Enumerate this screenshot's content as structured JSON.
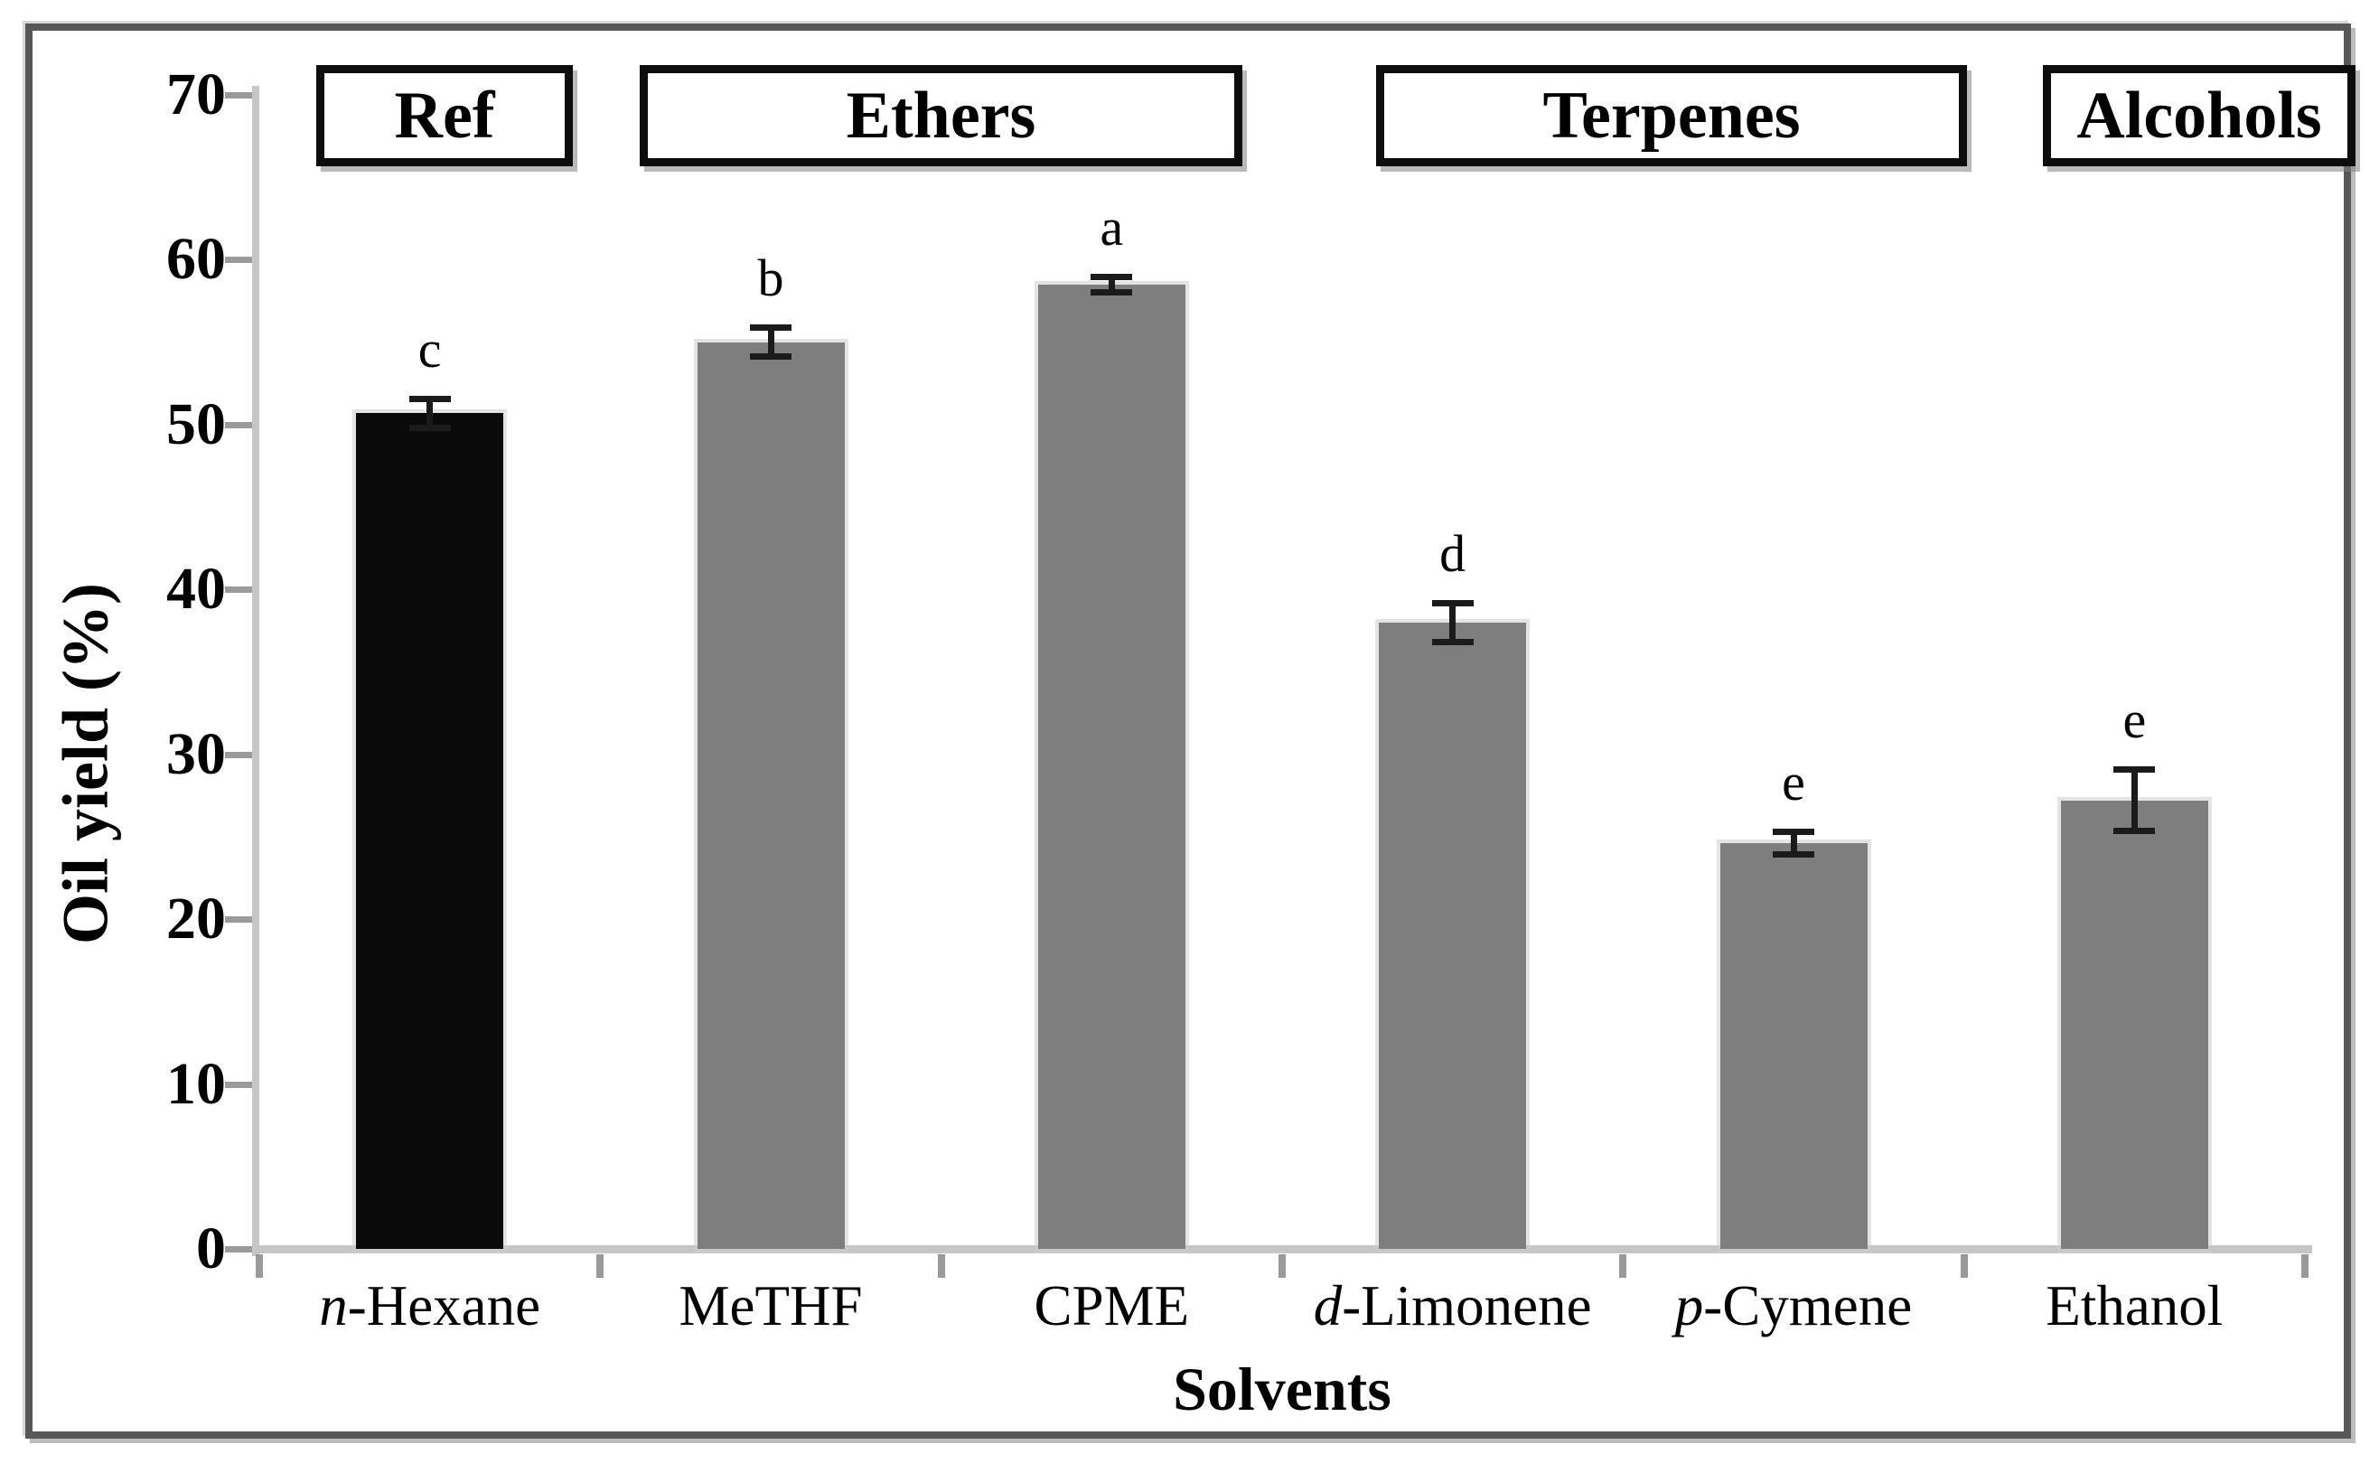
{
  "chart_data": {
    "type": "bar",
    "title": "",
    "categories": [
      "n-Hexane",
      "MeTHF",
      "CPME",
      "d-Limonene",
      "p-Cymene",
      "Ethanol"
    ],
    "category_italic_prefix_len": [
      1,
      0,
      0,
      1,
      1,
      0
    ],
    "values": [
      50.7,
      55.0,
      58.5,
      38.0,
      24.6,
      27.2
    ],
    "error_bars": [
      0.9,
      0.9,
      0.5,
      1.2,
      0.7,
      1.9
    ],
    "significance_letters": [
      "c",
      "b",
      "a",
      "d",
      "e",
      "e"
    ],
    "bar_colors": [
      "#0a0a0a",
      "#7e7e7e",
      "#7e7e7e",
      "#7e7e7e",
      "#7e7e7e",
      "#7e7e7e"
    ],
    "groups": [
      {
        "label": "Ref",
        "categories": [
          "n-Hexane"
        ]
      },
      {
        "label": "Ethers",
        "categories": [
          "MeTHF",
          "CPME"
        ]
      },
      {
        "label": "Terpenes",
        "categories": [
          "d-Limonene",
          "p-Cymene"
        ]
      },
      {
        "label": "Alcohols",
        "categories": [
          "Ethanol"
        ]
      }
    ],
    "xlabel": "Solvents",
    "ylabel": "Oil yield (%)",
    "ylim": [
      0,
      70
    ],
    "ytick_step": 10,
    "yticks": [
      0,
      10,
      20,
      30,
      40,
      50,
      60,
      70
    ],
    "grid": false,
    "legend": false
  },
  "colors": {
    "bar_gray": "#7e7e7e",
    "bar_black": "#0a0a0a",
    "axis_line": "#c6c6c6",
    "tick_mark": "#9a9a9a",
    "error_bar": "#1b1b1b",
    "text": "#000000",
    "frame_border": "#575757",
    "group_box_border": "#0d0d0d"
  }
}
